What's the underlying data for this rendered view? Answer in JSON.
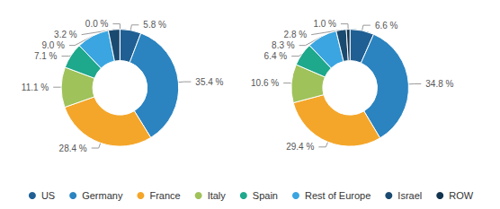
{
  "chart_data": [
    {
      "type": "pie",
      "categories": [
        "US",
        "Germany",
        "France",
        "Italy",
        "Spain",
        "Rest of Europe",
        "Israel",
        "ROW"
      ],
      "values": [
        5.8,
        35.4,
        28.4,
        11.1,
        7.1,
        9.0,
        3.2,
        0.0
      ],
      "value_labels": [
        "5.8 %",
        "35.4 %",
        "28.4 %",
        "11.1 %",
        "7.1 %",
        "9.0 %",
        "3.2 %",
        "0.0 %"
      ],
      "colors": [
        "#1f5f93",
        "#2b84c0",
        "#f4a62a",
        "#9fc25a",
        "#1ea88c",
        "#3aa5e0",
        "#1b4a70",
        "#13344f"
      ],
      "data_labels": true,
      "legend": "bottom"
    },
    {
      "type": "pie",
      "categories": [
        "US",
        "Germany",
        "France",
        "Italy",
        "Spain",
        "Rest of Europe",
        "Israel",
        "ROW"
      ],
      "values": [
        6.6,
        34.8,
        29.4,
        10.6,
        6.4,
        8.3,
        2.8,
        1.0
      ],
      "value_labels": [
        "6.6 %",
        "34.8 %",
        "29.4 %",
        "10.6 %",
        "6.4 %",
        "8.3 %",
        "2.8 %",
        "1.0 %"
      ],
      "colors": [
        "#1f5f93",
        "#2b84c0",
        "#f4a62a",
        "#9fc25a",
        "#1ea88c",
        "#3aa5e0",
        "#1b4a70",
        "#13344f"
      ],
      "data_labels": true
    }
  ]
}
